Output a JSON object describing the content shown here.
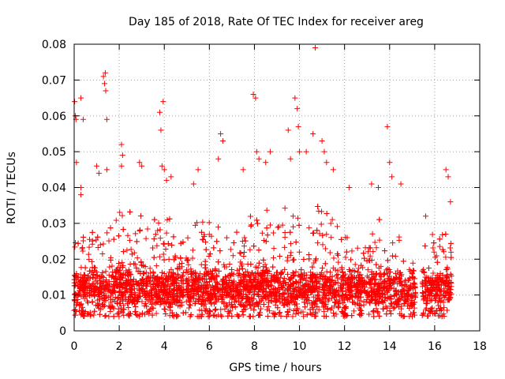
{
  "chart_data": {
    "type": "scatter",
    "title": "Day 185 of 2018, Rate Of TEC Index for receiver areg",
    "xlabel": "GPS time / hours",
    "ylabel": "ROTI / TECUs",
    "xlim": [
      0,
      18
    ],
    "ylim": [
      0,
      0.08
    ],
    "xticks": [
      0,
      2,
      4,
      6,
      8,
      10,
      12,
      14,
      16,
      18
    ],
    "xtick_labels": [
      "0",
      "2",
      "4",
      "6",
      "8",
      "10",
      "12",
      "14",
      "16",
      "18"
    ],
    "yticks": [
      0,
      0.01,
      0.02,
      0.03,
      0.04,
      0.05,
      0.06,
      0.07,
      0.08
    ],
    "ytick_labels": [
      "0",
      "0.01",
      "0.02",
      "0.03",
      "0.04",
      "0.05",
      "0.06",
      "0.07",
      "0.08"
    ],
    "grid": true,
    "marker": "+",
    "color": "#ff0000",
    "series": [
      {
        "name": "ROTI",
        "points": [
          [
            0.02,
            0.064
          ],
          [
            0.05,
            0.06
          ],
          [
            0.08,
            0.059
          ],
          [
            0.1,
            0.047
          ],
          [
            0.3,
            0.038
          ],
          [
            0.3,
            0.065
          ],
          [
            0.4,
            0.059
          ],
          [
            0.3,
            0.04
          ],
          [
            1.0,
            0.046
          ],
          [
            1.1,
            0.044
          ],
          [
            1.3,
            0.071
          ],
          [
            1.35,
            0.069
          ],
          [
            1.38,
            0.072
          ],
          [
            1.4,
            0.067
          ],
          [
            1.45,
            0.059
          ],
          [
            1.45,
            0.045
          ],
          [
            2.1,
            0.052
          ],
          [
            2.15,
            0.049
          ],
          [
            2.1,
            0.046
          ],
          [
            2.9,
            0.047
          ],
          [
            3.0,
            0.046
          ],
          [
            3.8,
            0.061
          ],
          [
            3.85,
            0.056
          ],
          [
            3.95,
            0.064
          ],
          [
            3.9,
            0.046
          ],
          [
            4.0,
            0.045
          ],
          [
            4.1,
            0.042
          ],
          [
            4.3,
            0.043
          ],
          [
            5.3,
            0.041
          ],
          [
            5.5,
            0.045
          ],
          [
            6.4,
            0.048
          ],
          [
            6.5,
            0.055
          ],
          [
            6.6,
            0.053
          ],
          [
            7.5,
            0.045
          ],
          [
            7.95,
            0.066
          ],
          [
            8.05,
            0.065
          ],
          [
            8.1,
            0.05
          ],
          [
            8.2,
            0.048
          ],
          [
            8.5,
            0.047
          ],
          [
            8.7,
            0.05
          ],
          [
            9.5,
            0.056
          ],
          [
            9.6,
            0.048
          ],
          [
            9.8,
            0.065
          ],
          [
            9.9,
            0.062
          ],
          [
            9.95,
            0.057
          ],
          [
            10.0,
            0.05
          ],
          [
            10.3,
            0.05
          ],
          [
            10.6,
            0.055
          ],
          [
            10.7,
            0.079
          ],
          [
            11.0,
            0.053
          ],
          [
            11.1,
            0.05
          ],
          [
            11.2,
            0.047
          ],
          [
            11.5,
            0.045
          ],
          [
            12.2,
            0.04
          ],
          [
            13.2,
            0.041
          ],
          [
            13.5,
            0.04
          ],
          [
            13.9,
            0.057
          ],
          [
            14.0,
            0.047
          ],
          [
            14.1,
            0.043
          ],
          [
            14.5,
            0.041
          ],
          [
            15.6,
            0.032
          ],
          [
            16.5,
            0.045
          ],
          [
            16.6,
            0.043
          ],
          [
            16.7,
            0.036
          ]
        ],
        "bulk_envelope": [
          [
            0,
            0.026
          ],
          [
            0.5,
            0.029
          ],
          [
            1,
            0.027
          ],
          [
            1.5,
            0.028
          ],
          [
            2,
            0.033
          ],
          [
            2.5,
            0.035
          ],
          [
            3,
            0.034
          ],
          [
            3.5,
            0.033
          ],
          [
            4,
            0.035
          ],
          [
            4.5,
            0.028
          ],
          [
            4.85,
            0.025
          ],
          [
            5,
            0.027
          ],
          [
            5.5,
            0.033
          ],
          [
            6,
            0.031
          ],
          [
            6.5,
            0.031
          ],
          [
            7,
            0.03
          ],
          [
            7.5,
            0.031
          ],
          [
            8,
            0.037
          ],
          [
            8.5,
            0.036
          ],
          [
            9,
            0.032
          ],
          [
            9.5,
            0.036
          ],
          [
            10,
            0.035
          ],
          [
            10.5,
            0.033
          ],
          [
            11,
            0.037
          ],
          [
            11.5,
            0.031
          ],
          [
            12,
            0.027
          ],
          [
            12.5,
            0.026
          ],
          [
            13,
            0.031
          ],
          [
            13.5,
            0.032
          ],
          [
            14,
            0.029
          ],
          [
            14.5,
            0.026
          ],
          [
            15,
            0.026
          ],
          [
            15.15,
            0.02
          ],
          [
            15.5,
            0.024
          ],
          [
            16,
            0.028
          ],
          [
            16.5,
            0.028
          ],
          [
            16.75,
            0.027
          ]
        ],
        "bulk_floor": 0.004,
        "bulk_level": 0.01,
        "gaps": [
          [
            4.85,
            4.95
          ],
          [
            15.15,
            15.45
          ]
        ]
      }
    ]
  }
}
